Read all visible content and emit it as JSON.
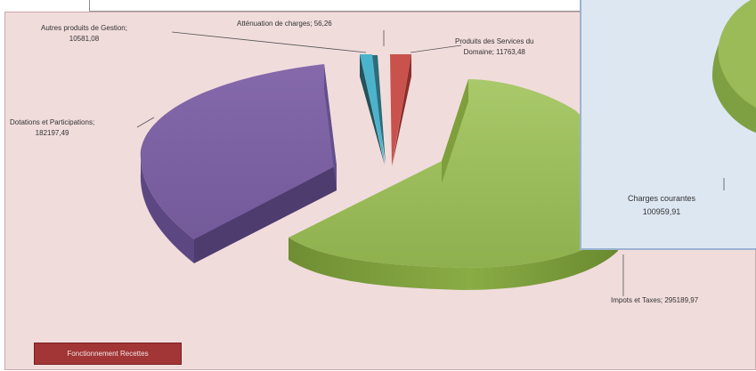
{
  "chart_data": [
    {
      "type": "pie",
      "style": "3d-exploded",
      "title": "",
      "slices": [
        {
          "label": "Impots et Taxes",
          "value": 295189.97,
          "value_text": "295189,97",
          "color": "#9bbb59"
        },
        {
          "label": "Dotations et Participations",
          "value": 182197.49,
          "value_text": "182197,49",
          "color": "#7e62a3"
        },
        {
          "label": "Autres produits de Gestion",
          "value": 10581.08,
          "value_text": "10581,08",
          "color": "#4bacc6"
        },
        {
          "label": "Atténuation de charges",
          "value": 56.26,
          "value_text": "56,26",
          "color": "#4a8f9f"
        },
        {
          "label": "Produits des Services du Domaine",
          "value": 11763.48,
          "value_text": "11763,48",
          "color": "#c0504d"
        }
      ]
    },
    {
      "type": "pie",
      "style": "3d-partial",
      "title": "",
      "slices": [
        {
          "label": "Charges courantes",
          "value": 100959.91,
          "value_text": "100959,91",
          "color": "#9bbb59"
        }
      ]
    }
  ],
  "labels": {
    "autres_l1": "Autres produits de Gestion;",
    "autres_l2": "10581,08",
    "attenuation": "Atténuation de charges; 56,26",
    "produits_l1": "Produits des Services du",
    "produits_l2": "Domaine; 11763,48",
    "dotations_l1": "Dotations et Participations;",
    "dotations_l2": "182197,49",
    "impots": "Impots et Taxes; 295189,97",
    "charges_l1": "Charges courantes",
    "charges_l2": "100959,91"
  },
  "legend_button": {
    "label": "Fonctionnement Recettes"
  },
  "colors": {
    "panel_bg": "#f1dcdc",
    "inset_bg": "#dde7f2",
    "button_bg": "#a23535"
  }
}
